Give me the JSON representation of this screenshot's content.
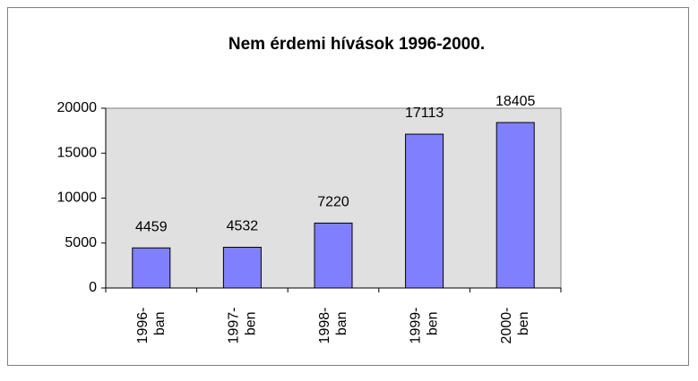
{
  "chart_data": {
    "type": "bar",
    "title": "Nem érdemi hívások 1996-2000.",
    "categories": [
      "1996- ban",
      "1997- ben",
      "1998- ban",
      "1999- ben",
      "2000- ben"
    ],
    "values": [
      4459,
      4532,
      7220,
      17113,
      18405
    ],
    "color": "#8080ff",
    "ylim": [
      0,
      20000
    ],
    "yticks": [
      0,
      5000,
      10000,
      15000,
      20000
    ],
    "grid": false,
    "plot_background": "#e0e0e0"
  }
}
